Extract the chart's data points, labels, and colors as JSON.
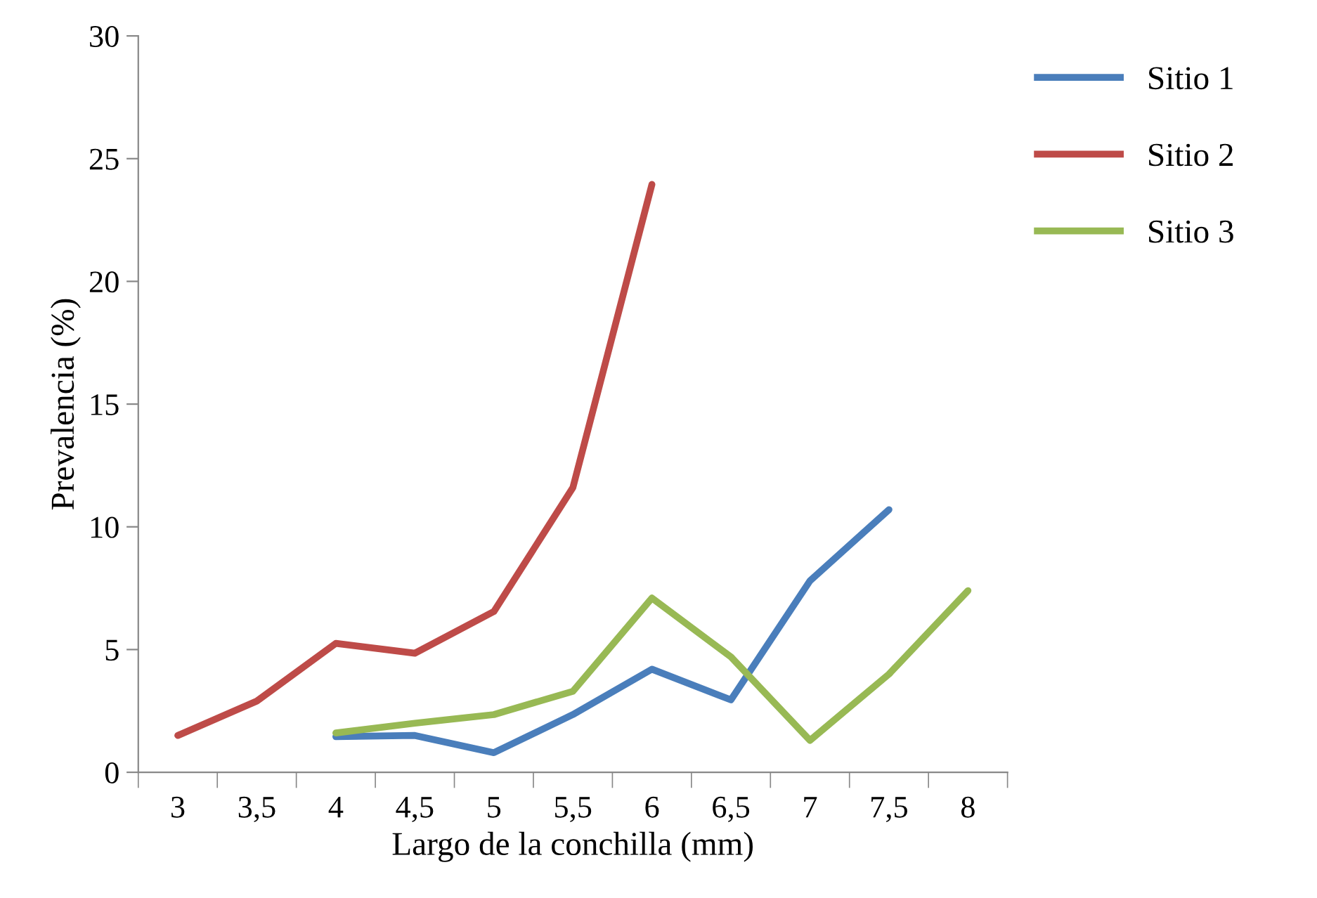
{
  "chart_data": {
    "type": "line",
    "xlabel": "Largo de la conchilla (mm)",
    "ylabel": "Prevalencia (%)",
    "categories": [
      "3",
      "3,5",
      "4",
      "4,5",
      "5",
      "5,5",
      "6",
      "6,5",
      "7",
      "7,5",
      "8"
    ],
    "series": [
      {
        "name": "Sitio 1",
        "color": "#4a7ebb",
        "values": [
          null,
          null,
          1.45,
          1.5,
          0.8,
          2.35,
          4.2,
          2.95,
          7.8,
          10.7,
          null
        ]
      },
      {
        "name": "Sitio 2",
        "color": "#be4b48",
        "values": [
          1.5,
          2.9,
          5.25,
          4.85,
          6.55,
          11.6,
          23.95,
          null,
          null,
          null,
          null
        ]
      },
      {
        "name": "Sitio 3",
        "color": "#98b954",
        "values": [
          null,
          null,
          1.6,
          2.0,
          2.35,
          3.3,
          7.1,
          4.7,
          1.3,
          4.0,
          7.4
        ]
      }
    ],
    "ylim": [
      0,
      30
    ],
    "yticks": [
      0,
      5,
      10,
      15,
      20,
      25,
      30
    ],
    "grid": false,
    "legend": "top right",
    "marker": "none",
    "line_style": "solid"
  }
}
